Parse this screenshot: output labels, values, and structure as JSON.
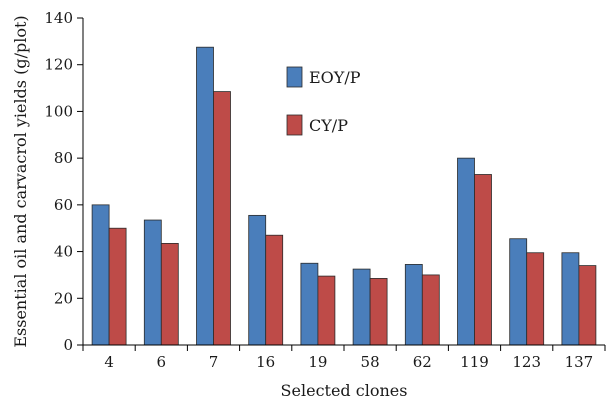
{
  "chart_data": {
    "type": "bar",
    "title": "",
    "xlabel": "Selected clones",
    "ylabel": "Essential oil and carvacrol yields (g/plot)",
    "ylim": [
      0,
      140
    ],
    "yticks": [
      0,
      20,
      40,
      60,
      80,
      100,
      120,
      140
    ],
    "categories": [
      "4",
      "6",
      "7",
      "16",
      "19",
      "58",
      "62",
      "119",
      "123",
      "137"
    ],
    "series": [
      {
        "name": "EOY/P",
        "color": "#4a7ebb",
        "values": [
          60,
          53.5,
          127.5,
          55.5,
          35,
          32.5,
          34.5,
          80,
          45.5,
          39.5
        ]
      },
      {
        "name": "CY/P",
        "color": "#be4b48",
        "values": [
          50,
          43.5,
          108.5,
          47,
          29.5,
          28.5,
          30,
          73,
          39.5,
          34
        ]
      }
    ],
    "legend_position": "upper-middle",
    "grid": false
  }
}
